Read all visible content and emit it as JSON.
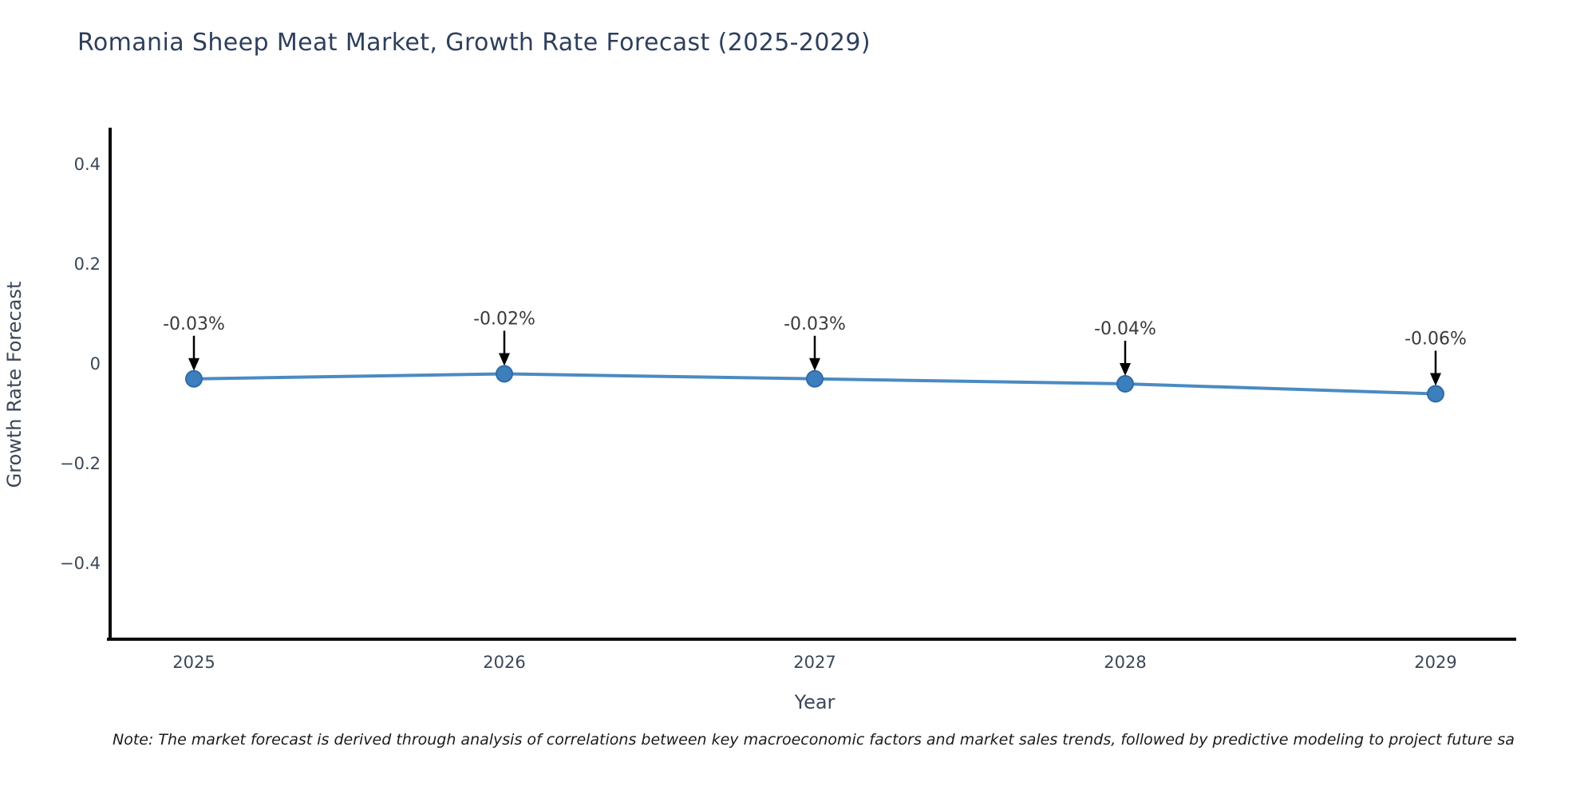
{
  "title": "Romania Sheep Meat Market, Growth Rate Forecast (2025-2029)",
  "note": "Note: The market forecast is derived through analysis of correlations between key macroeconomic factors and market sales trends, followed by predictive modeling to project future sa",
  "chart_data": {
    "type": "line",
    "title": "Romania Sheep Meat Market, Growth Rate Forecast (2025-2029)",
    "xlabel": "Year",
    "ylabel": "Growth Rate Forecast",
    "x": [
      "2025",
      "2026",
      "2027",
      "2028",
      "2029"
    ],
    "series": [
      {
        "name": "Growth Rate Forecast",
        "values": [
          -0.03,
          -0.02,
          -0.03,
          -0.04,
          -0.06
        ]
      }
    ],
    "point_labels": [
      "-0.03%",
      "-0.02%",
      "-0.03%",
      "-0.04%",
      "-0.06%"
    ],
    "yticks": [
      0.4,
      0.2,
      0,
      -0.2,
      -0.4
    ],
    "ytick_labels": [
      "0.4",
      "0.2",
      "0",
      "−0.2",
      "−0.4"
    ],
    "ylim": [
      -0.55,
      0.47
    ],
    "xlim": [
      2024.73,
      2029.27
    ],
    "grid": false,
    "legend_position": "none",
    "colors": {
      "line": "#4a8bc2",
      "marker_fill": "#3d7ebd",
      "marker_edge": "#2e6ba8",
      "arrow": "#000000",
      "axis": "#0a0a0a",
      "tick_text": "#3b4757",
      "title_text": "#2e3f5c",
      "annotation_text": "#3a3a3a",
      "note_text": "#1b1b1b",
      "background": "#ffffff"
    }
  }
}
